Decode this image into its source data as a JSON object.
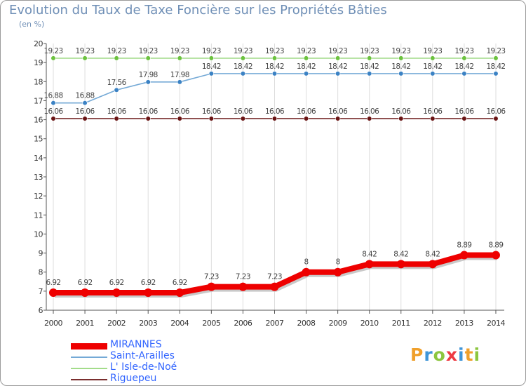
{
  "header": {
    "title": "Evolution du Taux de Taxe Foncière sur les Propriétés Bâties",
    "subtitle": "(en %)"
  },
  "logo": {
    "text": "Proxiti",
    "letters": [
      "P",
      "r",
      "o",
      "x",
      "i",
      "t",
      "i"
    ],
    "colors": [
      "#f0a02b",
      "#3f95d8",
      "#8cc63f",
      "#ee3a42",
      "#3f95d8",
      "#f0a02b",
      "#8cc63f"
    ]
  },
  "chart_data": {
    "type": "line",
    "title": "Evolution du Taux de Taxe Foncière sur les Propriétés Bâties",
    "ylabel": "(en %)",
    "xlabel": "",
    "ylim": [
      6,
      20
    ],
    "yticks": [
      "6",
      "7",
      "8",
      "9",
      "10",
      "11",
      "12",
      "13",
      "14",
      "15",
      "16",
      "17",
      "18",
      "19",
      "20"
    ],
    "x": [
      "2000",
      "2001",
      "2002",
      "2003",
      "2004",
      "2005",
      "2006",
      "2007",
      "2008",
      "2009",
      "2010",
      "2011",
      "2012",
      "2013",
      "2014"
    ],
    "grid": "vertical",
    "series": [
      {
        "name": "Saint-Arailles",
        "color": "#74a9d6",
        "marker": "#3b82c4",
        "values": [
          16.88,
          16.88,
          17.56,
          17.98,
          17.98,
          18.42,
          18.42,
          18.42,
          18.42,
          18.42,
          18.42,
          18.42,
          18.42,
          18.42,
          18.42
        ],
        "labels": [
          "16.88",
          "16.88",
          "17.56",
          "17.98",
          "17.98",
          "18.42",
          "18.42",
          "18.42",
          "18.42",
          "18.42",
          "18.42",
          "18.42",
          "18.42",
          "18.42",
          "18.42"
        ]
      },
      {
        "name": "L' Isle-de-Noé",
        "color": "#a3dc8a",
        "marker": "#6cc23f",
        "values": [
          19.23,
          19.23,
          19.23,
          19.23,
          19.23,
          19.23,
          19.23,
          19.23,
          19.23,
          19.23,
          19.23,
          19.23,
          19.23,
          19.23,
          19.23
        ],
        "labels": [
          "19.23",
          "19.23",
          "19.23",
          "19.23",
          "19.23",
          "19.23",
          "19.23",
          "19.23",
          "19.23",
          "19.23",
          "19.23",
          "19.23",
          "19.23",
          "19.23",
          "19.23"
        ]
      },
      {
        "name": "Riguepeu",
        "color": "#7a2e2e",
        "marker": "#6a1414",
        "values": [
          16.06,
          16.06,
          16.06,
          16.06,
          16.06,
          16.06,
          16.06,
          16.06,
          16.06,
          16.06,
          16.06,
          16.06,
          16.06,
          16.06,
          16.06
        ],
        "labels": [
          "16.06",
          "16.06",
          "16.06",
          "16.06",
          "16.06",
          "16.06",
          "16.06",
          "16.06",
          "16.06",
          "16.06",
          "16.06",
          "16.06",
          "16.06",
          "16.06",
          "16.06"
        ]
      },
      {
        "name": "MIRANNES",
        "color": "#ee0000",
        "marker": "#ee0000",
        "emphasis": true,
        "values": [
          6.92,
          6.92,
          6.92,
          6.92,
          6.92,
          7.23,
          7.23,
          7.23,
          8,
          8,
          8.42,
          8.42,
          8.42,
          8.89,
          8.89
        ],
        "labels": [
          "6.92",
          "6.92",
          "6.92",
          "6.92",
          "6.92",
          "7.23",
          "7.23",
          "7.23",
          "8",
          "8",
          "8.42",
          "8.42",
          "8.42",
          "8.89",
          "8.89"
        ]
      }
    ],
    "legend": {
      "position": "bottom-left",
      "order": [
        "MIRANNES",
        "Saint-Arailles",
        "L' Isle-de-Noé",
        "Riguepeu"
      ]
    }
  }
}
